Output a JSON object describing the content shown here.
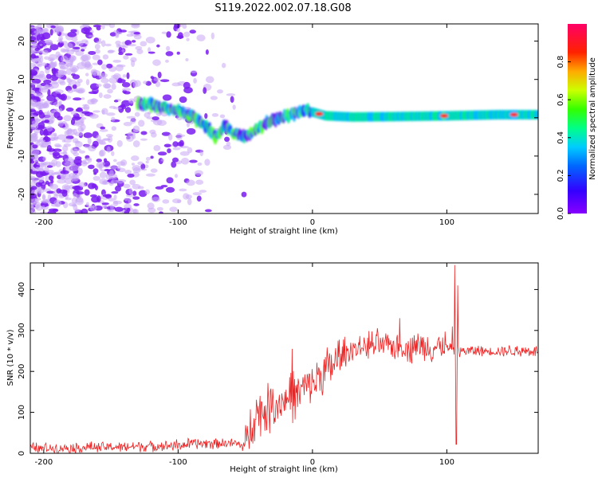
{
  "figure": {
    "title": "S119.2022.002.07.18.G08"
  },
  "chart_data": [
    {
      "type": "heatmap",
      "xlabel": "Height of straight line (km)",
      "ylabel": "Frequency (Hz)",
      "xlim": [
        -210,
        168
      ],
      "ylim": [
        -25,
        24.5
      ],
      "xticks": [
        -200,
        -100,
        0,
        100
      ],
      "yticks": [
        -20,
        -10,
        0,
        10,
        20
      ],
      "colorbar": {
        "label": "Normalized spectral amplitude",
        "range": [
          0,
          1
        ],
        "ticks": [
          0.0,
          0.2,
          0.4,
          0.6,
          0.8
        ],
        "colormap": "rainbow (purple-blue-cyan-green-yellow-red-magenta)"
      },
      "signal_track": {
        "x": [
          -130,
          -115,
          -100,
          -90,
          -80,
          -72,
          -65,
          -58,
          -50,
          -45,
          -35,
          -25,
          -15,
          -5,
          0,
          10,
          30,
          60,
          100,
          140,
          168
        ],
        "y": [
          4,
          3,
          2,
          0.5,
          -2,
          -5,
          -2,
          -4,
          -5,
          -4,
          -1.5,
          0,
          1,
          2,
          1.5,
          0.5,
          0.2,
          0.3,
          0.5,
          0.8,
          0.8
        ]
      },
      "grid": false
    },
    {
      "type": "line",
      "xlabel": "Height of straight line (km)",
      "ylabel": "SNR (10 * v/v)",
      "xlim": [
        -210,
        168
      ],
      "ylim": [
        0,
        465
      ],
      "xticks": [
        -200,
        -100,
        0,
        100
      ],
      "yticks": [
        0,
        100,
        200,
        300,
        400
      ],
      "series": [
        {
          "color": "#ee2222",
          "envelope": {
            "x": [
              -210,
              -150,
              -100,
              -80,
              -60,
              -50,
              -45,
              -40,
              -30,
              -20,
              -10,
              0,
              10,
              20,
              30,
              40,
              60,
              80,
              100,
              105,
              110,
              130,
              168
            ],
            "y": [
              12,
              15,
              20,
              25,
              25,
              18,
              85,
              100,
              115,
              130,
              150,
              170,
              200,
              230,
              255,
              262,
              262,
              262,
              258,
              250,
              250,
              250,
              250
            ]
          },
          "spikes": [
            {
              "x": 104,
              "y": 310
            },
            {
              "x": 106,
              "y": 460
            },
            {
              "x": 107,
              "y": 22
            },
            {
              "x": 108,
              "y": 410
            },
            {
              "x": -15,
              "y": 255
            },
            {
              "x": 65,
              "y": 330
            }
          ]
        }
      ],
      "grid": false
    }
  ],
  "colors": {
    "line": "#ee2222",
    "axes": "#000000"
  }
}
